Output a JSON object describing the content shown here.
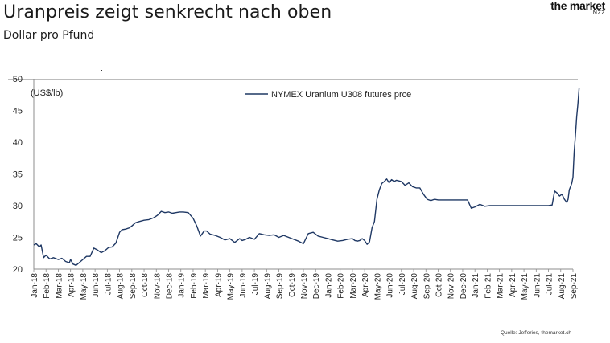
{
  "header": {
    "title": "Uranpreis zeigt senkrecht nach oben",
    "subtitle": "Dollar pro Pfund",
    "logo_main": "the market",
    "logo_sub": "NZZ"
  },
  "footer": {
    "source": "Quelle: Jefferies, themarket.ch"
  },
  "colors": {
    "series": "#1f3864",
    "axis": "#8c8c8c",
    "gridline": "#bdbdbd"
  },
  "chart_data": {
    "type": "line",
    "title": "",
    "unit_label": "(US$/lb)",
    "xlabel": "",
    "ylabel": "",
    "ylim": [
      20,
      50
    ],
    "yticks": [
      20,
      25,
      30,
      35,
      40,
      45,
      50
    ],
    "grid": false,
    "legend": "top-center",
    "categories": [
      "Jan-18",
      "Feb-18",
      "Mar-18",
      "Apr-18",
      "May-18",
      "Jun-18",
      "Jul-18",
      "Aug-18",
      "Sep-18",
      "Oct-18",
      "Nov-18",
      "Dec-18",
      "Jan-19",
      "Feb-19",
      "Mar-19",
      "Apr-19",
      "May-19",
      "Jun-19",
      "Jul-19",
      "Aug-19",
      "Sep-19",
      "Oct-19",
      "Nov-19",
      "Dec-19",
      "Jan-20",
      "Feb-20",
      "Mar-20",
      "Apr-20",
      "May-20",
      "Jun-20",
      "Jul-20",
      "Aug-20",
      "Sep-20",
      "Oct-20",
      "Nov-20",
      "Dec-20",
      "Jan-21",
      "Feb-21",
      "Mar-21",
      "Apr-21",
      "May-21",
      "Jun-21",
      "Jul-21",
      "Aug-21",
      "Sep-21"
    ],
    "series": [
      {
        "name": "NYMEX Uranium U308 futures prce",
        "x": [
          0,
          0.2,
          0.45,
          0.6,
          0.8,
          1.0,
          1.3,
          1.6,
          2.0,
          2.3,
          2.6,
          2.9,
          3.0,
          3.2,
          3.45,
          3.7,
          4.0,
          4.3,
          4.6,
          4.9,
          5.2,
          5.5,
          5.8,
          6.1,
          6.4,
          6.7,
          7.0,
          7.2,
          7.5,
          7.8,
          8.0,
          8.3,
          8.6,
          9.0,
          9.4,
          9.8,
          10.1,
          10.4,
          10.7,
          11.0,
          11.3,
          11.6,
          11.9,
          12.2,
          12.6,
          13.0,
          13.3,
          13.6,
          13.9,
          14.1,
          14.4,
          14.8,
          15.2,
          15.6,
          16.0,
          16.4,
          16.8,
          17.0,
          17.3,
          17.6,
          18.0,
          18.4,
          18.8,
          19.2,
          19.6,
          20.0,
          20.4,
          20.8,
          21.2,
          21.6,
          22.0,
          22.4,
          22.8,
          23.2,
          23.6,
          24.0,
          24.4,
          24.8,
          25.2,
          25.6,
          26.0,
          26.2,
          26.4,
          26.6,
          26.8,
          27.0,
          27.2,
          27.4,
          27.6,
          27.8,
          28.0,
          28.2,
          28.4,
          28.6,
          28.8,
          29.0,
          29.2,
          29.4,
          29.6,
          29.8,
          30.0,
          30.3,
          30.6,
          30.9,
          31.2,
          31.5,
          31.8,
          32.1,
          32.4,
          32.7,
          33.0,
          33.3,
          33.6,
          33.9,
          34.2,
          34.5,
          34.8,
          35.1,
          35.4,
          35.7,
          36.0,
          36.4,
          36.8,
          37.2,
          37.6,
          38.0,
          38.4,
          38.8,
          39.2,
          39.6,
          40.0,
          40.4,
          40.8,
          41.2,
          41.6,
          42.0,
          42.3,
          42.5,
          42.7,
          42.9,
          43.1,
          43.3,
          43.5,
          43.6,
          43.7,
          43.8,
          43.9,
          44.0,
          44.1,
          44.2,
          44.3,
          44.4,
          44.5
        ],
        "values": [
          23.8,
          24.0,
          23.5,
          23.8,
          21.8,
          22.2,
          21.6,
          21.8,
          21.5,
          21.7,
          21.2,
          21.0,
          21.5,
          20.8,
          20.6,
          21.0,
          21.5,
          22.0,
          22.0,
          23.3,
          23.0,
          22.6,
          22.9,
          23.4,
          23.5,
          24.1,
          25.8,
          26.2,
          26.3,
          26.5,
          26.8,
          27.3,
          27.5,
          27.7,
          27.8,
          28.1,
          28.5,
          29.1,
          28.9,
          29.0,
          28.8,
          28.9,
          29.0,
          29.0,
          28.9,
          28.0,
          26.8,
          25.2,
          26.0,
          26.0,
          25.5,
          25.3,
          25.0,
          24.6,
          24.8,
          24.2,
          24.8,
          24.5,
          24.7,
          25.0,
          24.7,
          25.6,
          25.4,
          25.3,
          25.4,
          25.0,
          25.3,
          25.0,
          24.7,
          24.4,
          24.0,
          25.6,
          25.8,
          25.2,
          25.0,
          24.8,
          24.6,
          24.4,
          24.5,
          24.7,
          24.8,
          24.5,
          24.4,
          24.5,
          24.8,
          24.5,
          23.9,
          24.3,
          26.5,
          27.5,
          31.0,
          32.5,
          33.5,
          33.8,
          34.2,
          33.6,
          34.1,
          33.8,
          34.0,
          33.9,
          33.8,
          33.2,
          33.6,
          33.0,
          32.8,
          32.8,
          31.8,
          31.0,
          30.8,
          31.0,
          30.9,
          30.9,
          30.9,
          30.9,
          30.9,
          30.9,
          30.9,
          30.9,
          30.9,
          29.6,
          29.8,
          30.2,
          29.9,
          30.0,
          30.0,
          30.0,
          30.0,
          30.0,
          30.0,
          30.0,
          30.0,
          30.0,
          30.0,
          30.0,
          30.0,
          30.0,
          30.1,
          32.3,
          32.0,
          31.5,
          31.8,
          31.0,
          30.5,
          31.0,
          32.5,
          33.0,
          33.5,
          34.5,
          38.5,
          41.0,
          44.0,
          46.0,
          48.5
        ]
      }
    ]
  }
}
